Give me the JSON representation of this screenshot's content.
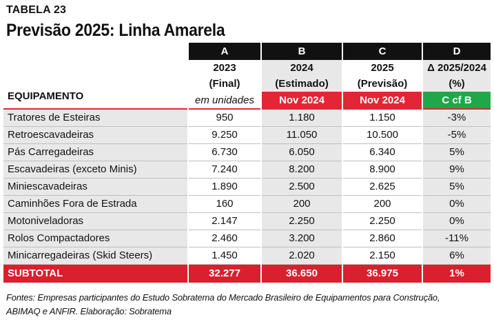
{
  "table_label": "TABELA 23",
  "title": "Previsão 2025: Linha Amarela",
  "equipment_label": "EQUIPAMENTO",
  "units_label": "em unidades",
  "columns": [
    {
      "letter": "A",
      "line1": "2023",
      "line2": "(Final)",
      "sub": ""
    },
    {
      "letter": "B",
      "line1": "2024",
      "line2": "(Estimado)",
      "sub": "Nov 2024"
    },
    {
      "letter": "C",
      "line1": "2025",
      "line2": "(Previsão)",
      "sub": "Nov 2024"
    },
    {
      "letter": "D",
      "line1": "Δ 2025/2024",
      "line2": "(%)",
      "sub": "C cf B"
    }
  ],
  "rows": [
    {
      "name": "Tratores de Esteiras",
      "a": "950",
      "b": "1.180",
      "c": "1.150",
      "d": "-3%"
    },
    {
      "name": "Retroescavadeiras",
      "a": "9.250",
      "b": "11.050",
      "c": "10.500",
      "d": "-5%"
    },
    {
      "name": "Pás Carregadeiras",
      "a": "6.730",
      "b": "6.050",
      "c": "6.340",
      "d": "5%"
    },
    {
      "name": "Escavadeiras (exceto Minis)",
      "a": "7.240",
      "b": "8.200",
      "c": "8.900",
      "d": "9%"
    },
    {
      "name": "Miniescavadeiras",
      "a": "1.890",
      "b": "2.500",
      "c": "2.625",
      "d": "5%"
    },
    {
      "name": "Caminhões Fora de Estrada",
      "a": "160",
      "b": "200",
      "c": "200",
      "d": "0%"
    },
    {
      "name": "Motoniveladoras",
      "a": "2.147",
      "b": "2.250",
      "c": "2.250",
      "d": "0%"
    },
    {
      "name": "Rolos Compactadores",
      "a": "2.460",
      "b": "3.200",
      "c": "2.860",
      "d": "-11%"
    },
    {
      "name": "Minicarregadeiras (Skid Steers)",
      "a": "1.450",
      "b": "2.020",
      "c": "2.150",
      "d": "6%"
    }
  ],
  "subtotal": {
    "name": "SUBTOTAL",
    "a": "32.277",
    "b": "36.650",
    "c": "36.975",
    "d": "1%"
  },
  "sources_line1": "Fontes: Empresas participantes do Estudo Sobratema do Mercado Brasileiro de Equipamentos para Construção,",
  "sources_line2": "ABIMAQ e ANFIR. Elaboração: Sobratema",
  "colors": {
    "red": "#e32636",
    "green": "#1ea84a",
    "black": "#111111",
    "shade": "#e8e8e8"
  }
}
